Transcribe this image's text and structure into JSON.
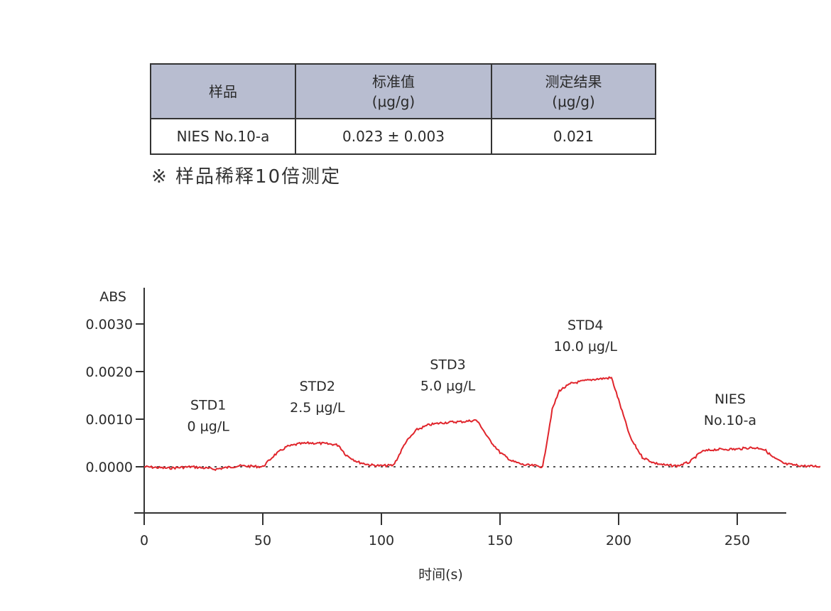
{
  "table": {
    "headers": [
      {
        "line1": "样品",
        "line2": ""
      },
      {
        "line1": "标准值",
        "line2": "(μg/g)"
      },
      {
        "line1": "测定结果",
        "line2": "(μg/g)"
      }
    ],
    "rows": [
      {
        "sample": "NIES No.10-a",
        "standard": "0.023 ± 0.003",
        "result": "0.021"
      }
    ]
  },
  "note": "※ 样品稀释10倍测定",
  "chart_data": {
    "type": "line",
    "ylabel": "ABS",
    "xlabel": "时间(s)",
    "xlim": [
      0,
      285
    ],
    "ylim": [
      -0.001,
      0.003
    ],
    "x_ticks": [
      "0",
      "50",
      "100",
      "150",
      "200",
      "250"
    ],
    "x_tick_values": [
      0,
      50,
      100,
      150,
      200,
      250
    ],
    "y_ticks": [
      "0.0000",
      "0.0010",
      "0.0020",
      "0.0030"
    ],
    "y_tick_values": [
      0,
      0.001,
      0.002,
      0.003
    ],
    "baseline": 0,
    "series_color": "#e0252c",
    "series": [
      {
        "x": [
          0,
          10,
          20,
          30,
          40,
          50,
          55,
          60,
          65,
          70,
          75,
          80,
          82,
          85,
          90,
          95,
          100,
          105,
          107,
          110,
          115,
          120,
          125,
          130,
          135,
          140,
          142,
          145,
          150,
          155,
          160,
          165,
          168,
          169,
          172,
          175,
          180,
          185,
          190,
          195,
          197,
          200,
          205,
          210,
          215,
          220,
          225,
          230,
          235,
          240,
          245,
          250,
          255,
          260,
          262,
          265,
          270,
          275,
          280,
          285
        ],
        "y": [
          0,
          -3e-05,
          0,
          -5e-05,
          2e-05,
          0,
          0.00025,
          0.00042,
          0.00048,
          0.0005,
          0.00049,
          0.00047,
          0.00045,
          0.00025,
          0.0001,
          4e-05,
          2e-05,
          3e-05,
          0.0002,
          0.0005,
          0.00078,
          0.00088,
          0.00092,
          0.00094,
          0.00095,
          0.00098,
          0.00085,
          0.0006,
          0.0003,
          0.00012,
          4e-05,
          2e-05,
          0.0,
          0.0003,
          0.0012,
          0.0016,
          0.00175,
          0.0018,
          0.00184,
          0.00186,
          0.00187,
          0.0014,
          0.0006,
          0.0002,
          8e-05,
          3e-05,
          2e-05,
          0.0001,
          0.00032,
          0.00036,
          0.00037,
          0.00037,
          0.0004,
          0.00039,
          0.00034,
          0.0002,
          6e-05,
          3e-05,
          1e-05,
          1e-05
        ]
      }
    ],
    "annotations": [
      {
        "x": 27,
        "y": 0.0012,
        "line1": "STD1",
        "line2": "0 μg/L"
      },
      {
        "x": 73,
        "y": 0.0016,
        "line1": "STD2",
        "line2": "2.5 μg/L"
      },
      {
        "x": 128,
        "y": 0.00205,
        "line1": "STD3",
        "line2": "5.0 μg/L"
      },
      {
        "x": 186,
        "y": 0.00288,
        "line1": "STD4",
        "line2": "10.0 μg/L"
      },
      {
        "x": 247,
        "y": 0.00133,
        "line1": "NIES",
        "line2": "No.10-a"
      }
    ]
  }
}
